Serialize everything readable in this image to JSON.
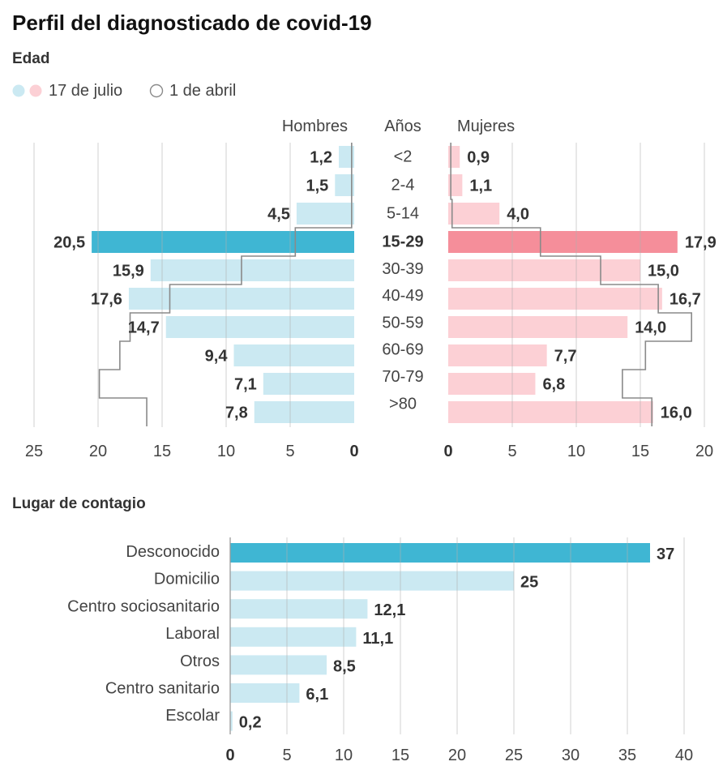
{
  "title": "Perfil del diagnosticado de covid-19",
  "colors": {
    "blue_light": "#cbe9f2",
    "blue_dark": "#3fb6d3",
    "pink_light": "#fcd0d5",
    "pink_dark": "#f58e9a",
    "outline": "#8a8a8a",
    "grid": "#b0b0b0",
    "axis": "#9a9a9a",
    "legend_previous_fill": "#ffffff"
  },
  "chart_data": [
    {
      "type": "bar",
      "title": "Edad",
      "legend": [
        "17 de julio",
        "1 de abril"
      ],
      "category_axis_label": "Años",
      "categories": [
        "<2",
        "2-4",
        "5-14",
        "15-29",
        "30-39",
        "40-49",
        "50-59",
        "60-69",
        "70-79",
        ">80"
      ],
      "highlight_index": 3,
      "groups": [
        {
          "name": "Hombres",
          "values": [
            1.2,
            1.5,
            4.5,
            20.5,
            15.9,
            17.6,
            14.7,
            9.4,
            7.1,
            7.8
          ],
          "labels": [
            "1,2",
            "1,5",
            "4,5",
            "20,5",
            "15,9",
            "17,6",
            "14,7",
            "9,4",
            "7,1",
            "7,8"
          ],
          "previous_values": [
            0.2,
            0.2,
            0.2,
            4.6,
            8.8,
            14.4,
            17.5,
            18.3,
            19.9,
            16.2
          ]
        },
        {
          "name": "Mujeres",
          "values": [
            0.9,
            1.1,
            4.0,
            17.9,
            15.0,
            16.7,
            14.0,
            7.7,
            6.8,
            16.0
          ],
          "labels": [
            "0,9",
            "1,1",
            "4,0",
            "17,9",
            "15,0",
            "16,7",
            "14,0",
            "7,7",
            "6,8",
            "16,0"
          ],
          "previous_values": [
            0.2,
            0.2,
            0.3,
            7.2,
            11.9,
            16.4,
            19.0,
            15.4,
            13.6,
            15.9
          ]
        }
      ],
      "xlim_left": [
        0,
        25
      ],
      "xlim_right": [
        0,
        20
      ],
      "ticks_left": [
        25,
        20,
        15,
        10,
        5,
        0
      ],
      "ticks_right": [
        0,
        5,
        10,
        15,
        20
      ]
    },
    {
      "type": "bar",
      "title": "Lugar de contagio",
      "categories": [
        "Desconocido",
        "Domicilio",
        "Centro sociosanitario",
        "Laboral",
        "Otros",
        "Centro sanitario",
        "Escolar"
      ],
      "values": [
        37,
        25,
        12.1,
        11.1,
        8.5,
        6.1,
        0.2
      ],
      "labels": [
        "37",
        "25",
        "12,1",
        "11,1",
        "8,5",
        "6,1",
        "0,2"
      ],
      "highlight_index": 0,
      "xlim": [
        0,
        40
      ],
      "ticks": [
        0,
        5,
        10,
        15,
        20,
        25,
        30,
        35,
        40
      ]
    }
  ]
}
